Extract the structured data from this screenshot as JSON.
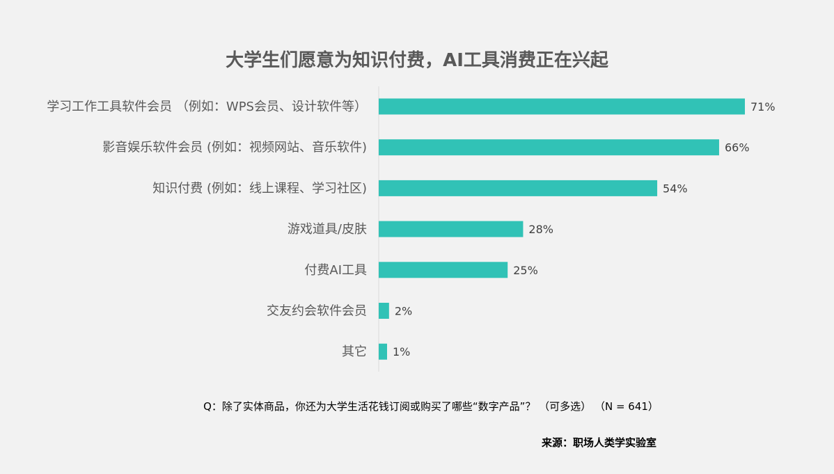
{
  "title": "大学生们愿意为知识付费，AI工具消费正在兴起",
  "question": "Q：除了实体商品，你还为大学生活花钱订阅或购买了哪些“数字产品”？  （可多选）  （N = 641）",
  "source": "来源：职场人类学实验室",
  "colors": {
    "bar": "#31c2b6",
    "background": "#f2f2f2",
    "label": "#595959",
    "value_label": "#404040",
    "axis": "#d9d9d9"
  },
  "chart_data": {
    "type": "bar",
    "orientation": "horizontal",
    "categories": [
      "学习工作工具软件会员  （例如：WPS会员、设计软件等）",
      "影音娱乐软件会员 (例如：视频网站、音乐软件)",
      "知识付费 (例如：线上课程、学习社区)",
      "游戏道具/皮肤",
      "付费AI工具",
      "交友约会软件会员",
      "其它"
    ],
    "values": [
      71,
      66,
      54,
      28,
      25,
      2,
      1
    ],
    "value_labels": [
      "71%",
      "66%",
      "54%",
      "28%",
      "25%",
      "2%",
      "1%"
    ],
    "unit": "%",
    "xlim": [
      0,
      75
    ],
    "grid": false,
    "legend": "none"
  }
}
